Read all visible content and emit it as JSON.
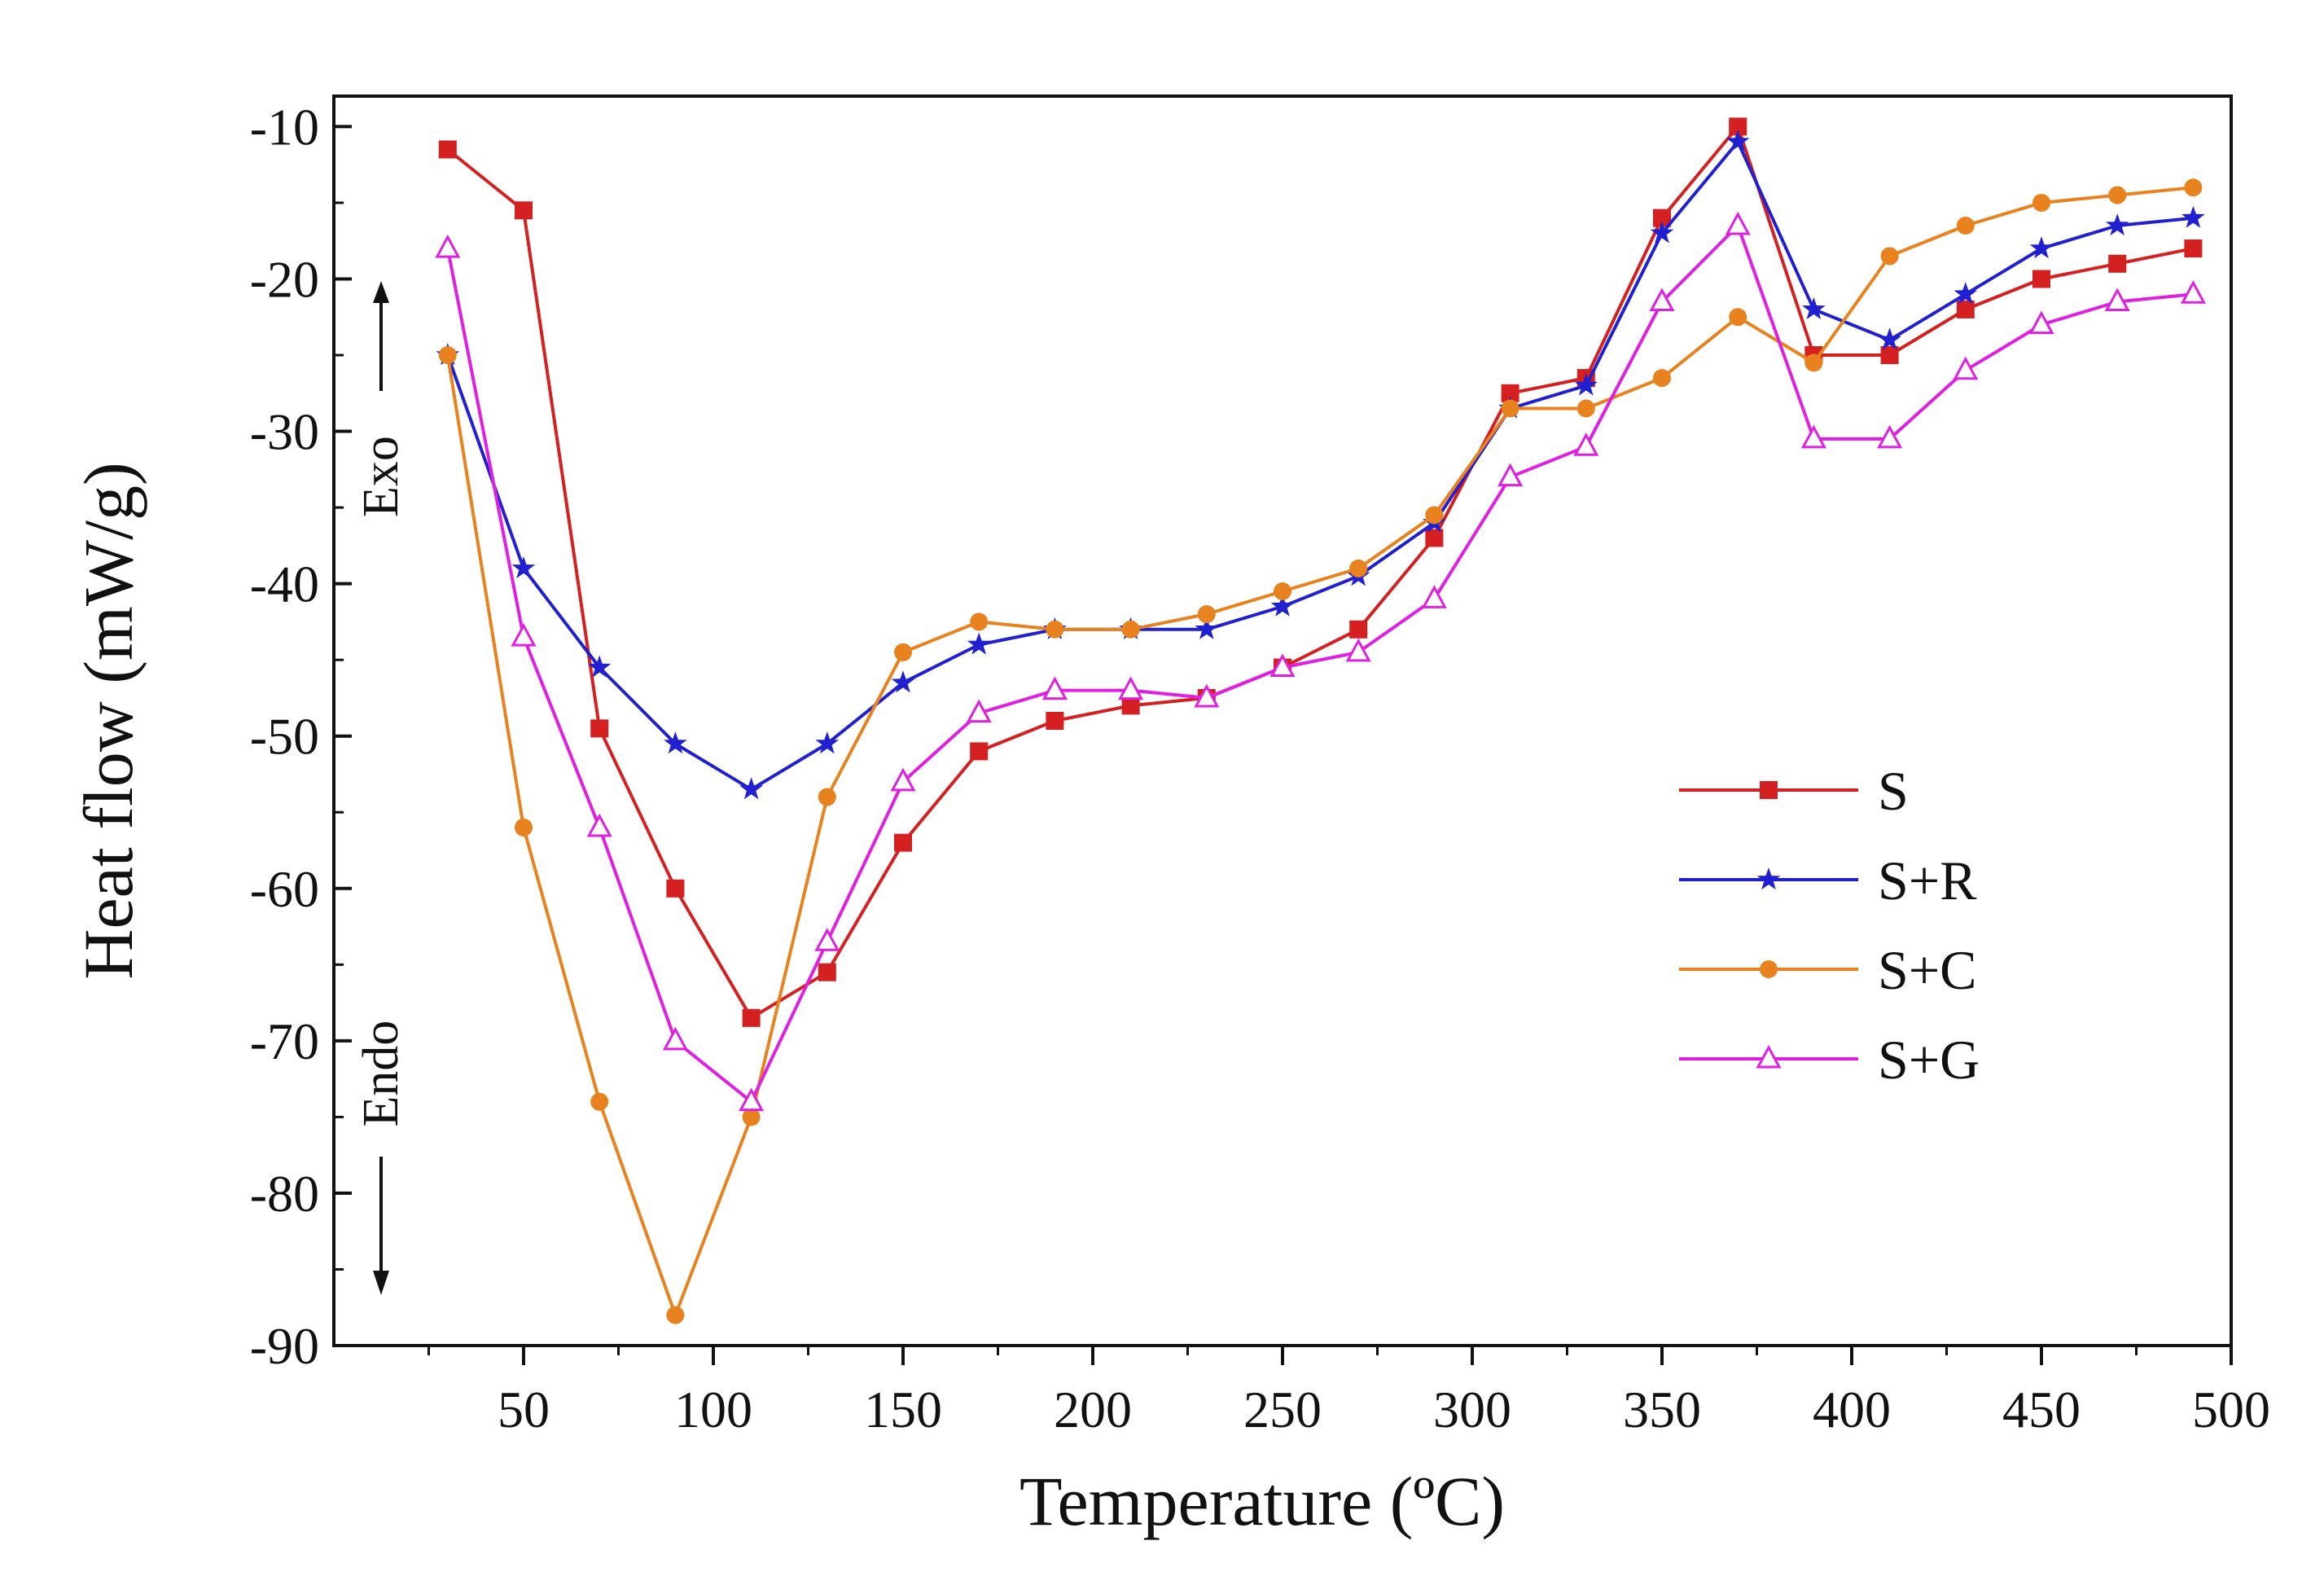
{
  "chart_data": {
    "type": "line",
    "title": "",
    "xlabel": "Temperature (ºC)",
    "ylabel": "Heat flow (mW/g)",
    "xlim": [
      0,
      500
    ],
    "ylim": [
      -90,
      -8
    ],
    "xticks": [
      50,
      100,
      150,
      200,
      250,
      300,
      350,
      400,
      450,
      500
    ],
    "yticks": [
      -10,
      -20,
      -30,
      -40,
      -50,
      -60,
      -70,
      -80,
      -90
    ],
    "xtick_labels": [
      "50",
      "100",
      "150",
      "200",
      "250",
      "300",
      "350",
      "400",
      "450",
      "500"
    ],
    "ytick_labels": [
      "-10",
      "-20",
      "-30",
      "-40",
      "-50",
      "-60",
      "-70",
      "-80",
      "-90"
    ],
    "exo_label": "Exo",
    "endo_label": "Endo",
    "grid": false,
    "legend_position": "center-right",
    "x": [
      30,
      50,
      70,
      90,
      110,
      130,
      150,
      170,
      190,
      210,
      230,
      250,
      270,
      290,
      310,
      330,
      350,
      370,
      390,
      410,
      430,
      450,
      470,
      490
    ],
    "series": [
      {
        "name": "S",
        "color": "#d42020",
        "marker": "square",
        "values": [
          -11.5,
          -15.5,
          -49.5,
          -60,
          -68.5,
          -65.5,
          -57,
          -51,
          -49,
          -48,
          -47.5,
          -45.5,
          -43,
          -37,
          -27.5,
          -26.5,
          -16,
          -10,
          -25,
          -25,
          -22,
          -20,
          -19,
          -18
        ]
      },
      {
        "name": "S+R",
        "color": "#2020d0",
        "marker": "star",
        "values": [
          -25,
          -39,
          -45.5,
          -50.5,
          -53.5,
          -50.5,
          -46.5,
          -44,
          -43,
          -43,
          -43,
          -41.5,
          -39.5,
          -36,
          -28.5,
          -27,
          -17,
          -11,
          -22,
          -24,
          -21,
          -18,
          -16.5,
          -16
        ]
      },
      {
        "name": "S+C",
        "color": "#e8821e",
        "marker": "circle",
        "values": [
          -25,
          -56,
          -74,
          -88,
          -75,
          -54,
          -44.5,
          -42.5,
          -43,
          -43,
          -42,
          -40.5,
          -39,
          -35.5,
          -28.5,
          -28.5,
          -26.5,
          -22.5,
          -25.5,
          -18.5,
          -16.5,
          -15,
          -14.5,
          -14
        ]
      },
      {
        "name": "S+G",
        "color": "#e020e0",
        "marker": "triangle-open",
        "values": [
          -18,
          -43.5,
          -56,
          -70,
          -74,
          -63.5,
          -53,
          -48.5,
          -47,
          -47,
          -47.5,
          -45.5,
          -44.5,
          -41,
          -33,
          -31,
          -21.5,
          -16.5,
          -30.5,
          -30.5,
          -26,
          -23,
          -21.5,
          -21
        ]
      }
    ]
  }
}
